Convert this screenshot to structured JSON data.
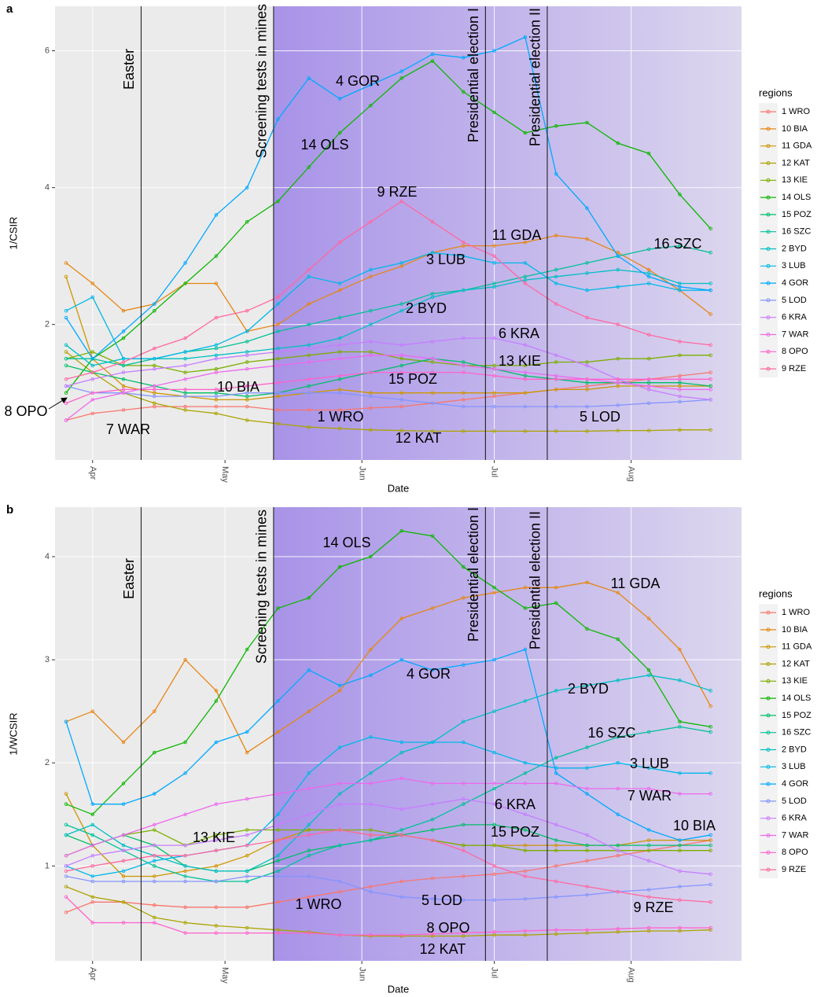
{
  "chart_data": [
    {
      "type": "line",
      "panel": "a",
      "xlabel": "Date",
      "ylabel": "1/CSIR",
      "legend_title": "regions",
      "legend": "right",
      "grid": true,
      "xlim": [
        -8.5,
        147
      ],
      "ylim": [
        0.02,
        6.65
      ],
      "xticks": [
        {
          "value": 0,
          "label": "Apr"
        },
        {
          "value": 30,
          "label": "May"
        },
        {
          "value": 61,
          "label": "Jun"
        },
        {
          "value": 91,
          "label": "Jul"
        },
        {
          "value": 122,
          "label": "Aug"
        }
      ],
      "yticks": [
        2,
        4,
        6
      ],
      "events": [
        {
          "label": "Easter",
          "x": 11
        },
        {
          "label": "Screening tests in mines",
          "x": 41
        },
        {
          "label": "Presidential election I",
          "x": 89
        },
        {
          "label": "Presidential election II",
          "x": 103
        }
      ],
      "annotations": [
        "4 GOR",
        "14 OLS",
        "9 RZE",
        "11 GDA",
        "3 LUB",
        "16 SZC",
        "2 BYD",
        "6 KRA",
        "13 KIE",
        "15 POZ",
        "10 BIA",
        "8 OPO",
        "1 WRO",
        "5 LOD",
        "12 KAT",
        "7 WAR"
      ],
      "x": [
        -6,
        0,
        7,
        14,
        21,
        28,
        35,
        42,
        49,
        56,
        63,
        70,
        77,
        84,
        91,
        98,
        105,
        112,
        119,
        126,
        133,
        140
      ],
      "series": [
        {
          "name": "1 WRO",
          "color": "#F8766D",
          "values": [
            0.6,
            0.7,
            0.75,
            0.8,
            0.8,
            0.8,
            0.8,
            0.75,
            0.75,
            0.75,
            0.78,
            0.8,
            0.85,
            0.9,
            0.95,
            1.0,
            1.05,
            1.1,
            1.15,
            1.2,
            1.25,
            1.3
          ]
        },
        {
          "name": "10 BIA",
          "color": "#E68613",
          "values": [
            2.9,
            2.6,
            2.2,
            2.3,
            2.6,
            2.6,
            1.9,
            2.0,
            2.3,
            2.5,
            2.7,
            2.85,
            3.05,
            3.15,
            3.15,
            3.2,
            3.3,
            3.25,
            3.05,
            2.8,
            2.5,
            2.15
          ]
        },
        {
          "name": "11 GDA",
          "color": "#CD9600",
          "values": [
            2.7,
            1.5,
            1.1,
            1.0,
            0.95,
            0.9,
            0.9,
            0.95,
            1.0,
            1.05,
            1.0,
            1.0,
            1.0,
            1.0,
            1.0,
            1.0,
            1.05,
            1.05,
            1.1,
            1.1,
            1.1,
            1.1
          ]
        },
        {
          "name": "12 KAT",
          "color": "#ABA300",
          "values": [
            1.6,
            1.3,
            1.0,
            0.85,
            0.75,
            0.7,
            0.6,
            0.55,
            0.5,
            0.48,
            0.46,
            0.45,
            0.44,
            0.44,
            0.44,
            0.44,
            0.44,
            0.44,
            0.45,
            0.45,
            0.46,
            0.46
          ]
        },
        {
          "name": "13 KIE",
          "color": "#7CAE00",
          "values": [
            1.5,
            1.6,
            1.4,
            1.4,
            1.3,
            1.35,
            1.45,
            1.5,
            1.55,
            1.6,
            1.6,
            1.5,
            1.45,
            1.4,
            1.4,
            1.4,
            1.45,
            1.45,
            1.5,
            1.5,
            1.55,
            1.55
          ]
        },
        {
          "name": "14 OLS",
          "color": "#0CB702",
          "values": [
            1.0,
            1.5,
            1.8,
            2.2,
            2.6,
            3.0,
            3.5,
            3.8,
            4.3,
            4.8,
            5.2,
            5.6,
            5.85,
            5.4,
            5.1,
            4.8,
            4.9,
            4.95,
            4.65,
            4.5,
            3.9,
            3.4
          ]
        },
        {
          "name": "15 POZ",
          "color": "#00BE67",
          "values": [
            1.4,
            1.3,
            1.2,
            1.1,
            1.0,
            1.0,
            0.95,
            1.0,
            1.1,
            1.2,
            1.3,
            1.4,
            1.5,
            1.45,
            1.35,
            1.25,
            1.2,
            1.15,
            1.15,
            1.15,
            1.15,
            1.1
          ]
        },
        {
          "name": "16 SZC",
          "color": "#00C19A",
          "values": [
            1.5,
            1.5,
            1.4,
            1.5,
            1.6,
            1.65,
            1.75,
            1.9,
            2.0,
            2.1,
            2.2,
            2.3,
            2.45,
            2.5,
            2.6,
            2.7,
            2.8,
            2.9,
            3.0,
            3.1,
            3.15,
            3.05
          ]
        },
        {
          "name": "2 BYD",
          "color": "#00BFC4",
          "values": [
            1.7,
            1.4,
            1.5,
            1.5,
            1.5,
            1.55,
            1.6,
            1.65,
            1.7,
            1.8,
            2.0,
            2.2,
            2.4,
            2.5,
            2.55,
            2.65,
            2.7,
            2.75,
            2.8,
            2.75,
            2.6,
            2.6
          ]
        },
        {
          "name": "3 LUB",
          "color": "#00B8E7",
          "values": [
            2.2,
            2.4,
            1.5,
            1.5,
            1.6,
            1.7,
            1.9,
            2.3,
            2.7,
            2.6,
            2.8,
            2.9,
            3.05,
            3.0,
            2.9,
            2.9,
            2.6,
            2.5,
            2.55,
            2.6,
            2.5,
            2.5
          ]
        },
        {
          "name": "4 GOR",
          "color": "#00A9FF",
          "values": [
            2.1,
            1.5,
            1.9,
            2.3,
            2.9,
            3.6,
            4.0,
            5.0,
            5.6,
            5.3,
            5.5,
            5.7,
            5.95,
            5.9,
            6.0,
            6.2,
            4.2,
            3.7,
            3.0,
            2.7,
            2.55,
            2.5
          ]
        },
        {
          "name": "5 LOD",
          "color": "#8494FF",
          "values": [
            1.1,
            1.0,
            1.0,
            0.95,
            0.95,
            0.95,
            1.0,
            1.0,
            1.0,
            1.0,
            0.95,
            0.9,
            0.85,
            0.8,
            0.8,
            0.8,
            0.8,
            0.8,
            0.82,
            0.85,
            0.87,
            0.9
          ]
        },
        {
          "name": "6 KRA",
          "color": "#C77CFF",
          "values": [
            1.1,
            1.2,
            1.3,
            1.35,
            1.4,
            1.5,
            1.55,
            1.6,
            1.65,
            1.7,
            1.75,
            1.7,
            1.75,
            1.8,
            1.8,
            1.7,
            1.55,
            1.4,
            1.2,
            1.05,
            0.95,
            0.9
          ]
        },
        {
          "name": "7 WAR",
          "color": "#ED68ED",
          "values": [
            0.6,
            0.9,
            1.0,
            1.1,
            1.2,
            1.3,
            1.35,
            1.4,
            1.45,
            1.5,
            1.55,
            1.55,
            1.5,
            1.4,
            1.35,
            1.3,
            1.25,
            1.2,
            1.15,
            1.1,
            1.05,
            1.05
          ]
        },
        {
          "name": "8 OPO",
          "color": "#FF61CC",
          "values": [
            0.85,
            1.0,
            1.05,
            1.05,
            1.05,
            1.05,
            1.1,
            1.15,
            1.2,
            1.25,
            1.3,
            1.3,
            1.3,
            1.3,
            1.25,
            1.2,
            1.2,
            1.2,
            1.2,
            1.2,
            1.2,
            1.2
          ]
        },
        {
          "name": "9 RZE",
          "color": "#FF68A1",
          "values": [
            1.2,
            1.3,
            1.45,
            1.65,
            1.8,
            2.1,
            2.2,
            2.4,
            2.8,
            3.2,
            3.5,
            3.8,
            3.5,
            3.2,
            3.0,
            2.6,
            2.3,
            2.1,
            2.0,
            1.85,
            1.75,
            1.7
          ]
        }
      ]
    },
    {
      "type": "line",
      "panel": "b",
      "xlabel": "Date",
      "ylabel": "1/WCSIR",
      "legend_title": "regions",
      "legend": "right",
      "grid": true,
      "xlim": [
        -8.5,
        147
      ],
      "ylim": [
        0.08,
        4.48
      ],
      "xticks": [
        {
          "value": 0,
          "label": "Apr"
        },
        {
          "value": 30,
          "label": "May"
        },
        {
          "value": 61,
          "label": "Jun"
        },
        {
          "value": 91,
          "label": "Jul"
        },
        {
          "value": 122,
          "label": "Aug"
        }
      ],
      "yticks": [
        1,
        2,
        3,
        4
      ],
      "events": [
        {
          "label": "Easter",
          "x": 11
        },
        {
          "label": "Screening tests in mines",
          "x": 41
        },
        {
          "label": "Presidential election I",
          "x": 89
        },
        {
          "label": "Presidential election II",
          "x": 103
        }
      ],
      "annotations": [
        "14 OLS",
        "11 GDA",
        "4 GOR",
        "2 BYD",
        "16 SZC",
        "3 LUB",
        "7 WAR",
        "10 BIA",
        "6 KRA",
        "15 POZ",
        "13 KIE",
        "1 WRO",
        "5 LOD",
        "9 RZE",
        "8 OPO",
        "12 KAT"
      ],
      "x": [
        -6,
        0,
        7,
        14,
        21,
        28,
        35,
        42,
        49,
        56,
        63,
        70,
        77,
        84,
        91,
        98,
        105,
        112,
        119,
        126,
        133,
        140
      ],
      "series": [
        {
          "name": "1 WRO",
          "color": "#F8766D",
          "values": [
            0.55,
            0.65,
            0.65,
            0.62,
            0.6,
            0.6,
            0.6,
            0.65,
            0.7,
            0.75,
            0.8,
            0.85,
            0.88,
            0.9,
            0.92,
            0.95,
            1.0,
            1.05,
            1.1,
            1.15,
            1.2,
            1.25
          ]
        },
        {
          "name": "10 BIA",
          "color": "#E68613",
          "values": [
            2.4,
            2.5,
            2.2,
            2.5,
            3.0,
            2.7,
            2.1,
            2.3,
            2.5,
            2.7,
            3.1,
            3.4,
            3.5,
            3.6,
            3.65,
            3.7,
            3.7,
            3.75,
            3.65,
            3.4,
            3.1,
            2.55
          ]
        },
        {
          "name": "11 GDA",
          "color": "#CD9600",
          "values": [
            1.7,
            1.2,
            0.9,
            0.9,
            0.95,
            1.0,
            1.1,
            1.25,
            1.35,
            1.35,
            1.3,
            1.3,
            1.25,
            1.2,
            1.2,
            1.2,
            1.2,
            1.2,
            1.2,
            1.25,
            1.25,
            1.25
          ]
        },
        {
          "name": "12 KAT",
          "color": "#ABA300",
          "values": [
            0.8,
            0.7,
            0.65,
            0.5,
            0.45,
            0.42,
            0.4,
            0.38,
            0.36,
            0.33,
            0.32,
            0.32,
            0.32,
            0.32,
            0.33,
            0.33,
            0.34,
            0.35,
            0.36,
            0.37,
            0.37,
            0.38
          ]
        },
        {
          "name": "13 KIE",
          "color": "#7CAE00",
          "values": [
            1.1,
            1.2,
            1.3,
            1.35,
            1.2,
            1.3,
            1.35,
            1.35,
            1.35,
            1.35,
            1.35,
            1.3,
            1.25,
            1.2,
            1.2,
            1.15,
            1.15,
            1.15,
            1.15,
            1.15,
            1.15,
            1.15
          ]
        },
        {
          "name": "14 OLS",
          "color": "#0CB702",
          "values": [
            1.6,
            1.5,
            1.8,
            2.1,
            2.2,
            2.6,
            3.1,
            3.5,
            3.6,
            3.9,
            4.0,
            4.25,
            4.2,
            3.9,
            3.7,
            3.5,
            3.55,
            3.3,
            3.2,
            2.9,
            2.4,
            2.35
          ]
        },
        {
          "name": "15 POZ",
          "color": "#00BE67",
          "values": [
            1.3,
            1.2,
            1.3,
            1.2,
            1.0,
            0.95,
            0.95,
            1.05,
            1.15,
            1.2,
            1.25,
            1.3,
            1.35,
            1.4,
            1.4,
            1.35,
            1.25,
            1.2,
            1.2,
            1.2,
            1.2,
            1.2
          ]
        },
        {
          "name": "16 SZC",
          "color": "#00C19A",
          "values": [
            1.4,
            1.3,
            1.15,
            1.0,
            0.9,
            0.85,
            0.85,
            0.95,
            1.1,
            1.2,
            1.25,
            1.35,
            1.45,
            1.6,
            1.75,
            1.9,
            2.05,
            2.15,
            2.25,
            2.3,
            2.35,
            2.3
          ]
        },
        {
          "name": "2 BYD",
          "color": "#00BFC4",
          "values": [
            1.3,
            1.4,
            1.2,
            1.1,
            1.0,
            0.95,
            0.95,
            1.1,
            1.4,
            1.7,
            1.9,
            2.1,
            2.2,
            2.4,
            2.5,
            2.6,
            2.7,
            2.75,
            2.8,
            2.85,
            2.8,
            2.7
          ]
        },
        {
          "name": "3 LUB",
          "color": "#00B8E7",
          "values": [
            1.0,
            0.9,
            0.95,
            1.05,
            1.1,
            1.15,
            1.2,
            1.5,
            1.9,
            2.15,
            2.25,
            2.2,
            2.2,
            2.2,
            2.1,
            2.0,
            1.95,
            1.95,
            2.0,
            1.95,
            1.9,
            1.9
          ]
        },
        {
          "name": "4 GOR",
          "color": "#00A9FF",
          "values": [
            2.4,
            1.6,
            1.6,
            1.7,
            1.9,
            2.2,
            2.3,
            2.6,
            2.9,
            2.75,
            2.85,
            3.0,
            2.9,
            2.95,
            3.0,
            3.1,
            1.9,
            1.7,
            1.5,
            1.35,
            1.25,
            1.3
          ]
        },
        {
          "name": "5 LOD",
          "color": "#8494FF",
          "values": [
            0.9,
            0.85,
            0.85,
            0.85,
            0.85,
            0.85,
            0.9,
            0.9,
            0.9,
            0.85,
            0.75,
            0.7,
            0.68,
            0.67,
            0.67,
            0.68,
            0.7,
            0.72,
            0.75,
            0.77,
            0.8,
            0.82
          ]
        },
        {
          "name": "6 KRA",
          "color": "#C77CFF",
          "values": [
            1.0,
            1.1,
            1.15,
            1.2,
            1.2,
            1.25,
            1.3,
            1.4,
            1.5,
            1.6,
            1.6,
            1.55,
            1.6,
            1.65,
            1.6,
            1.5,
            1.4,
            1.3,
            1.15,
            1.05,
            0.95,
            0.92
          ]
        },
        {
          "name": "7 WAR",
          "color": "#ED68ED",
          "values": [
            1.1,
            1.2,
            1.3,
            1.4,
            1.5,
            1.6,
            1.65,
            1.7,
            1.75,
            1.8,
            1.8,
            1.85,
            1.8,
            1.8,
            1.8,
            1.8,
            1.8,
            1.75,
            1.75,
            1.75,
            1.7,
            1.7
          ]
        },
        {
          "name": "8 OPO",
          "color": "#FF61CC",
          "values": [
            0.7,
            0.45,
            0.45,
            0.45,
            0.35,
            0.35,
            0.35,
            0.35,
            0.35,
            0.33,
            0.33,
            0.33,
            0.34,
            0.35,
            0.36,
            0.37,
            0.38,
            0.38,
            0.39,
            0.4,
            0.4,
            0.4
          ]
        },
        {
          "name": "9 RZE",
          "color": "#FF68A1",
          "values": [
            0.95,
            1.0,
            1.05,
            1.1,
            1.1,
            1.15,
            1.2,
            1.25,
            1.3,
            1.35,
            1.3,
            1.3,
            1.25,
            1.15,
            1.0,
            0.9,
            0.85,
            0.8,
            0.75,
            0.7,
            0.67,
            0.65
          ]
        }
      ]
    }
  ]
}
